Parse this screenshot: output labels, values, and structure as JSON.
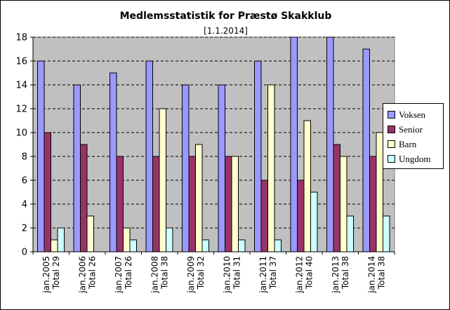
{
  "chart_data": {
    "type": "bar",
    "title": "Medlemsstatistik for Præstø Skakklub",
    "subtitle": "[1.1.2014]",
    "xlabel": "",
    "ylabel": "",
    "ylim": [
      0,
      18
    ],
    "yticks": [
      0,
      2,
      4,
      6,
      8,
      10,
      12,
      14,
      16,
      18
    ],
    "grid": true,
    "legend_position": "right",
    "plot_background": "#c0c0c0",
    "categories": [
      {
        "line1": "jan.2005",
        "line2": "Total 29"
      },
      {
        "line1": "jan.2006",
        "line2": "Total 26"
      },
      {
        "line1": "jan.2007",
        "line2": "Total 26"
      },
      {
        "line1": "jan.2008",
        "line2": "Total 38"
      },
      {
        "line1": "jan.2009",
        "line2": "Total 32"
      },
      {
        "line1": "jan.2010",
        "line2": "Total 31"
      },
      {
        "line1": "jan.2011",
        "line2": "Total 37"
      },
      {
        "line1": "jan.2012",
        "line2": "Total 40"
      },
      {
        "line1": "jan.2013",
        "line2": "Total 38"
      },
      {
        "line1": "jan.2014",
        "line2": "Total 38"
      }
    ],
    "series": [
      {
        "name": "Voksen",
        "color": "#9999ff",
        "values": [
          16,
          14,
          15,
          16,
          14,
          14,
          16,
          18,
          18,
          17
        ]
      },
      {
        "name": "Senior",
        "color": "#993366",
        "values": [
          10,
          9,
          8,
          8,
          8,
          8,
          6,
          6,
          9,
          8
        ]
      },
      {
        "name": "Barn",
        "color": "#ffffcc",
        "values": [
          1,
          3,
          2,
          12,
          9,
          8,
          14,
          11,
          8,
          10
        ]
      },
      {
        "name": "Ungdom",
        "color": "#ccffff",
        "values": [
          2,
          0,
          1,
          2,
          1,
          1,
          1,
          5,
          3,
          3
        ]
      }
    ]
  }
}
